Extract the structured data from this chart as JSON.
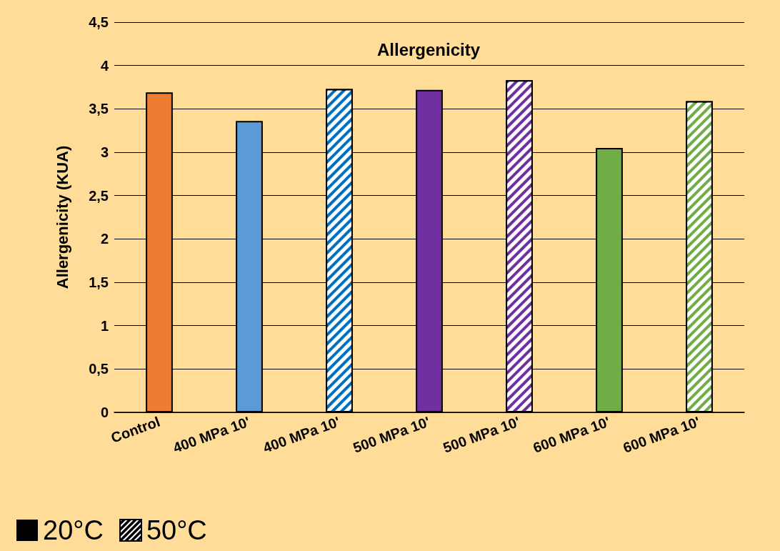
{
  "chart_data": {
    "type": "bar",
    "title": "Allergenicity",
    "ylabel": "Allergenicity (KUA)",
    "categories": [
      "Control",
      "400 MPa 10'",
      "400 MPa 10'",
      "500 MPa 10'",
      "500 MPa 10'",
      "600 MPa 10'",
      "600 MPa 10'"
    ],
    "series": [
      {
        "colors": [
          "#ed7d31",
          "#5b9bd5",
          null,
          "#7030a0",
          null,
          "#70ad47",
          null
        ],
        "values": [
          3.69,
          3.36,
          null,
          3.72,
          null,
          3.05,
          null
        ]
      },
      {
        "colors": [
          null,
          null,
          "#0070c0",
          null,
          "#7030a0",
          null,
          "#70ad47"
        ],
        "values": [
          null,
          null,
          3.73,
          null,
          3.83,
          null,
          3.59
        ]
      }
    ],
    "ylim": [
      0,
      4.5
    ],
    "yticks": [
      {
        "value": 0,
        "label": "0"
      },
      {
        "value": 0.5,
        "label": "0,5"
      },
      {
        "value": 1,
        "label": "1"
      },
      {
        "value": 1.5,
        "label": "1,5"
      },
      {
        "value": 2,
        "label": "2"
      },
      {
        "value": 2.5,
        "label": "2,5"
      },
      {
        "value": 3,
        "label": "3"
      },
      {
        "value": 3.5,
        "label": "3,5"
      },
      {
        "value": 4,
        "label": "4"
      },
      {
        "value": 4.5,
        "label": "4,5"
      }
    ],
    "grid": "y",
    "annotations": [
      "20°C",
      "50°C"
    ]
  }
}
